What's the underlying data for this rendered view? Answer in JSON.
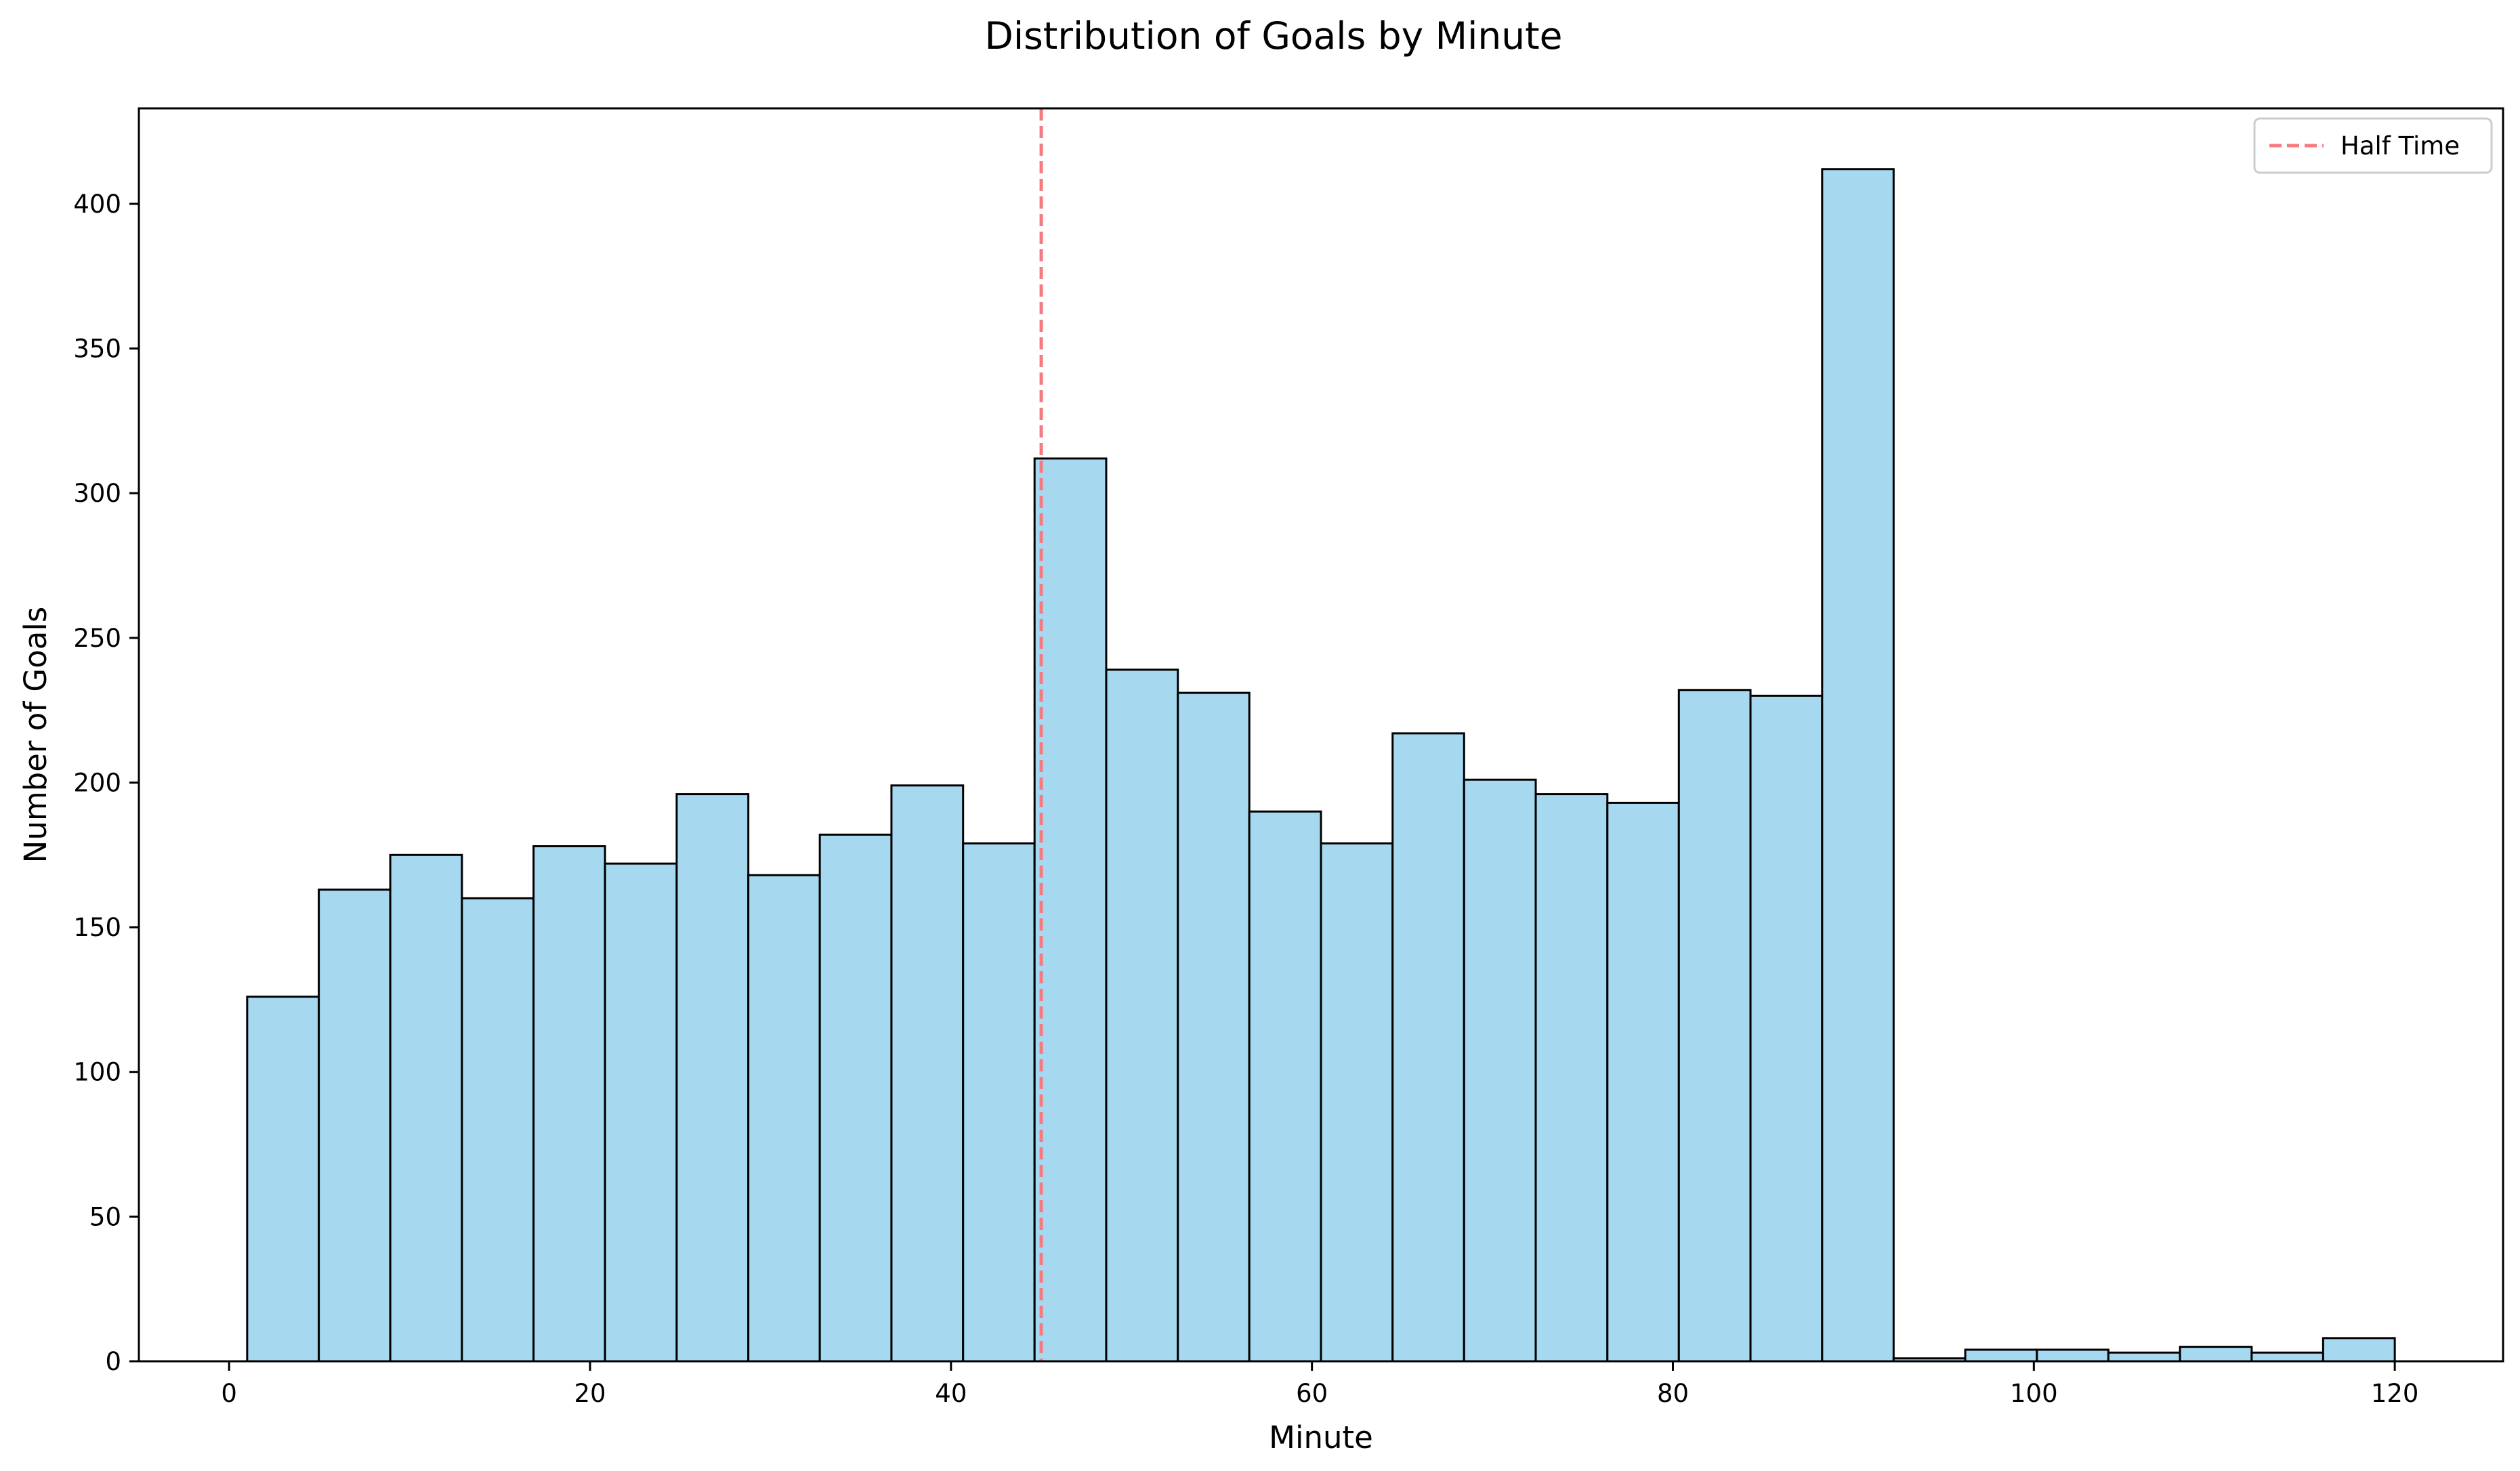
{
  "chart_data": {
    "type": "bar",
    "title": "Distribution of Goals by Minute",
    "xlabel": "Minute",
    "ylabel": "Number of Goals",
    "xlim": [
      -5.0,
      126.0
    ],
    "ylim": [
      0,
      433
    ],
    "xticks": [
      0,
      20,
      40,
      60,
      80,
      100,
      120
    ],
    "yticks": [
      0,
      50,
      100,
      150,
      200,
      250,
      300,
      350,
      400
    ],
    "bin_edges": [
      1.0,
      4.97,
      8.93,
      12.9,
      16.87,
      20.83,
      24.8,
      28.77,
      32.73,
      36.7,
      40.67,
      44.63,
      48.6,
      52.57,
      56.53,
      60.5,
      64.47,
      68.43,
      72.4,
      76.37,
      80.33,
      84.3,
      88.27,
      92.23,
      96.2,
      100.17,
      104.13,
      108.1,
      112.07,
      116.03,
      120.0
    ],
    "values": [
      126,
      163,
      175,
      160,
      178,
      172,
      196,
      168,
      182,
      199,
      179,
      312,
      239,
      231,
      190,
      179,
      217,
      201,
      196,
      193,
      232,
      230,
      412,
      1,
      4,
      4,
      3,
      5,
      3,
      8
    ],
    "bar_color": "#a6d9ef",
    "edge_color": "#000000",
    "reference_line": {
      "x": 45,
      "name": "Half Time",
      "color": "#f47c80",
      "style": "dashed"
    },
    "legend": {
      "position": "top-right",
      "entries": [
        "Half Time"
      ]
    },
    "grid": false
  }
}
